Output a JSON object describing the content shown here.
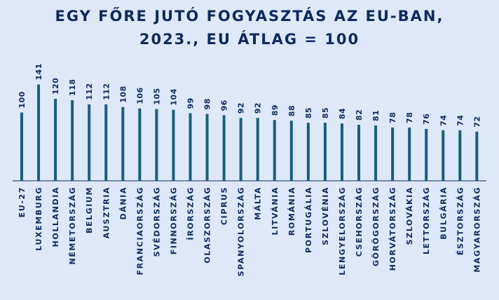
{
  "title_line1": "EGY FŐRE JUTÓ FOGYASZTÁS AZ EU-BAN,",
  "title_line2": "2023., EU ÁTLAG = 100",
  "colors": {
    "background": "#dde9f8",
    "bar": "#1b5e7a",
    "text": "#0e2a5c",
    "axis": "#0e2a5c"
  },
  "chart_data": {
    "type": "bar",
    "title": "EGY FŐRE JUTÓ FOGYASZTÁS AZ EU-BAN, 2023., EU ÁTLAG = 100",
    "categories": [
      "EU-27",
      "LUXEMBURG",
      "HOLLANDIA",
      "NÉMETORSZÁG",
      "BELGIUM",
      "AUSZTRIA",
      "DÁNIA",
      "FRANCIAORSZÁG",
      "SVÉDORSZÁG",
      "FINNORSZÁG",
      "ÍRORSZÁG",
      "OLASZORSZÁG",
      "CIPRUS",
      "SPANYOLORSZÁG",
      "MÁLTA",
      "LITVÁNIA",
      "ROMÁNIA",
      "PORTUGÁLIA",
      "SZLOVÉNIA",
      "LENGYELORSZÁG",
      "CSEHORSZÁG",
      "GÖRÖGORSZÁG",
      "HORVÁTORSZÁG",
      "SZLOVÁKIA",
      "LETTORSZÁG",
      "BULGÁRIA",
      "ÉSZTORSZÁG",
      "MAGYARORSZÁG"
    ],
    "values": [
      100,
      141,
      120,
      118,
      112,
      112,
      108,
      106,
      105,
      104,
      99,
      98,
      96,
      92,
      92,
      89,
      88,
      85,
      85,
      84,
      82,
      81,
      78,
      78,
      76,
      74,
      74,
      72
    ],
    "xlabel": "",
    "ylabel": "",
    "ylim": [
      0,
      145
    ],
    "grid": false,
    "data_labels": true
  }
}
